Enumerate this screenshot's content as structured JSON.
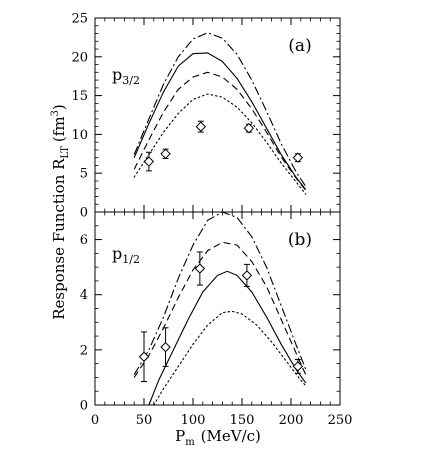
{
  "chart_data": {
    "type": "line",
    "xlabel": "P",
    "xlabel_sub": "m",
    "xlabel_units": "(MeV/c)",
    "ylabel": "Response Function R",
    "ylabel_sub": "LT",
    "ylabel_units": "(fm",
    "ylabel_units_sup": "3",
    "ylabel_units_close": ")",
    "xlim": [
      0,
      250
    ],
    "x_ticks": [
      "0",
      "50",
      "100",
      "150",
      "200",
      "250"
    ],
    "panels": [
      {
        "id": "a",
        "label": "(a)",
        "state": "p",
        "state_sub": "3/2",
        "ylim": [
          0,
          25
        ],
        "y_ticks": [
          0,
          5,
          10,
          15,
          20,
          25
        ],
        "y_tick_labels": [
          "0",
          "5",
          "10",
          "15",
          "20",
          "25"
        ],
        "data": {
          "x": [
            55,
            72,
            108,
            157,
            207
          ],
          "y": [
            6.5,
            7.5,
            11.0,
            10.8,
            7.0
          ],
          "err": [
            1.2,
            0.6,
            0.7,
            0.5,
            0.5
          ]
        },
        "series": [
          {
            "style": "dash-dot",
            "x": [
              40,
              55,
              70,
              85,
              100,
              115,
              130,
              145,
              160,
              175,
              190,
              205,
              215
            ],
            "y": [
              7.4,
              12.0,
              16.5,
              20.0,
              22.3,
              23.1,
              22.4,
              20.3,
              17.0,
              13.0,
              8.8,
              5.2,
              3.3
            ]
          },
          {
            "style": "solid",
            "x": [
              40,
              55,
              70,
              85,
              100,
              115,
              130,
              145,
              160,
              175,
              190,
              205,
              215
            ],
            "y": [
              7.0,
              11.4,
              15.5,
              18.8,
              20.4,
              20.5,
              19.4,
              17.2,
              14.2,
              10.8,
              7.4,
              4.5,
              2.9
            ]
          },
          {
            "style": "dashed",
            "x": [
              40,
              55,
              70,
              85,
              100,
              115,
              130,
              145,
              160,
              175,
              190,
              205,
              215
            ],
            "y": [
              5.5,
              9.3,
              12.9,
              15.8,
              17.4,
              18.0,
              17.4,
              15.8,
              13.3,
              10.3,
              7.1,
              4.4,
              2.8
            ]
          },
          {
            "style": "dotted",
            "x": [
              40,
              55,
              70,
              85,
              100,
              115,
              130,
              145,
              160,
              175,
              190,
              205,
              215
            ],
            "y": [
              4.5,
              7.4,
              10.3,
              12.7,
              14.5,
              15.2,
              14.8,
              13.5,
              11.5,
              9.0,
              6.3,
              3.9,
              2.3
            ]
          }
        ]
      },
      {
        "id": "b",
        "label": "(b)",
        "state": "p",
        "state_sub": "1/2",
        "ylim": [
          0,
          7
        ],
        "y_ticks": [
          0,
          2,
          4,
          6
        ],
        "y_tick_labels": [
          "0",
          "2",
          "4",
          "6"
        ],
        "data": {
          "x": [
            50,
            72,
            107,
            155,
            207
          ],
          "y": [
            1.75,
            2.1,
            4.95,
            4.7,
            1.4
          ],
          "err": [
            0.9,
            0.7,
            0.6,
            0.4,
            0.25
          ]
        },
        "series": [
          {
            "style": "dash-dot",
            "x": [
              40,
              55,
              70,
              85,
              100,
              115,
              130,
              145,
              160,
              175,
              190,
              205,
              215
            ],
            "y": [
              1.1,
              2.0,
              3.2,
              4.6,
              5.8,
              6.7,
              7.0,
              6.8,
              6.1,
              5.0,
              3.6,
              2.2,
              1.3
            ]
          },
          {
            "style": "dashed",
            "x": [
              40,
              55,
              70,
              85,
              100,
              115,
              130,
              145,
              160,
              175,
              190,
              205,
              215
            ],
            "y": [
              1.0,
              1.8,
              2.8,
              3.9,
              4.9,
              5.6,
              5.9,
              5.8,
              5.2,
              4.3,
              3.1,
              1.9,
              1.1
            ]
          },
          {
            "style": "solid",
            "x": [
              55,
              65,
              80,
              95,
              110,
              125,
              135,
              145,
              160,
              175,
              190,
              205,
              215
            ],
            "y": [
              0.0,
              0.9,
              2.0,
              3.1,
              4.1,
              4.7,
              4.85,
              4.7,
              4.1,
              3.2,
              2.2,
              1.3,
              0.8
            ]
          },
          {
            "style": "dotted",
            "x": [
              60,
              70,
              85,
              100,
              115,
              130,
              140,
              150,
              165,
              180,
              195,
              210,
              215
            ],
            "y": [
              0.0,
              0.6,
              1.4,
              2.2,
              2.9,
              3.35,
              3.4,
              3.3,
              2.9,
              2.3,
              1.6,
              0.9,
              0.7
            ]
          }
        ]
      }
    ]
  }
}
